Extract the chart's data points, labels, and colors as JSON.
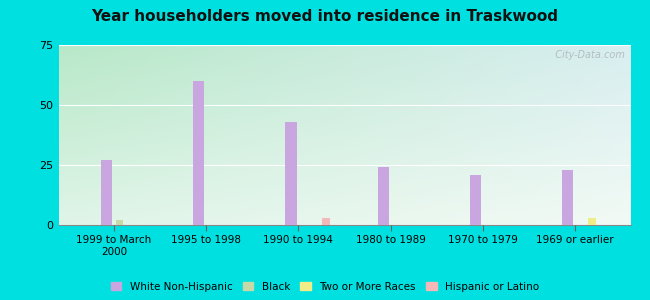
{
  "title": "Year householders moved into residence in Traskwood",
  "categories": [
    "1999 to March\n2000",
    "1995 to 1998",
    "1990 to 1994",
    "1980 to 1989",
    "1970 to 1979",
    "1969 or earlier"
  ],
  "series": {
    "White Non-Hispanic": [
      27,
      60,
      43,
      24,
      21,
      23
    ],
    "Black": [
      2,
      0,
      0,
      0,
      0,
      0
    ],
    "Two or More Races": [
      0,
      0,
      0,
      0,
      0,
      3
    ],
    "Hispanic or Latino": [
      0,
      0,
      3,
      0,
      0,
      0
    ]
  },
  "colors": {
    "White Non-Hispanic": "#c9a6e0",
    "Black": "#c8d9a8",
    "Two or More Races": "#f0ec88",
    "Hispanic or Latino": "#f5b8b8"
  },
  "ylim": [
    0,
    75
  ],
  "yticks": [
    0,
    25,
    50,
    75
  ],
  "bg_color_topleft": "#b8e8c8",
  "bg_color_topright": "#d8eef0",
  "bg_color_bottomleft": "#e0f4e8",
  "bg_color_bottomright": "#f5fafa",
  "outer_background": "#00e0e0",
  "bar_width": 0.12,
  "watermark": "  City-Data.com"
}
